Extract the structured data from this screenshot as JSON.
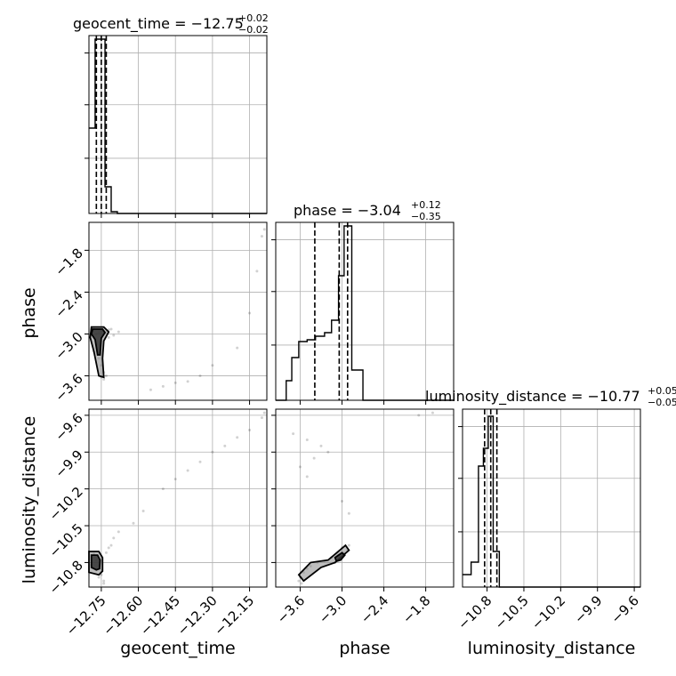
{
  "chart_data": {
    "type": "corner",
    "parameters": [
      "geocent_time",
      "phase",
      "luminosity_distance"
    ],
    "titles": [
      {
        "param": "geocent_time",
        "text": "geocent_time = −12.75",
        "plus": "+0.02",
        "minus": "−0.02"
      },
      {
        "param": "phase",
        "text": "phase = −3.04",
        "plus": "+0.12",
        "minus": "−0.35"
      },
      {
        "param": "luminosity_distance",
        "text": "luminosity_distance = −10.77",
        "plus": "+0.05",
        "minus": "−0.05"
      }
    ],
    "axis_labels": {
      "geocent_time": "geocent_time",
      "phase": "phase",
      "luminosity_distance": "luminosity_distance"
    },
    "ranges": {
      "geocent_time": [
        -12.8,
        -12.08
      ],
      "phase": [
        -3.95,
        -1.4
      ],
      "luminosity_distance": [
        -11.0,
        -9.55
      ]
    },
    "ticks": {
      "geocent_time": [
        -12.75,
        -12.6,
        -12.45,
        -12.3,
        -12.15
      ],
      "phase": [
        -3.6,
        -3.0,
        -2.4,
        -1.8
      ],
      "luminosity_distance": [
        -10.8,
        -10.5,
        -10.2,
        -9.9,
        -9.6
      ]
    },
    "tick_labels": {
      "geocent_time": [
        "−12.75",
        "−12.60",
        "−12.45",
        "−12.30",
        "−12.15"
      ],
      "phase": [
        "−3.6",
        "−3.0",
        "−2.4",
        "−1.8"
      ],
      "luminosity_distance": [
        "−10.8",
        "−10.5",
        "−10.2",
        "−9.9",
        "−9.6"
      ]
    },
    "quantiles": {
      "geocent_time": [
        -12.77,
        -12.75,
        -12.73
      ],
      "phase": [
        -3.39,
        -3.04,
        -2.92
      ],
      "luminosity_distance": [
        -10.82,
        -10.77,
        -10.72
      ]
    },
    "histograms": {
      "geocent_time": {
        "edges": [
          -12.8,
          -12.775,
          -12.755,
          -12.735,
          -12.71,
          -12.685,
          -12.66,
          -12.08
        ],
        "counts": [
          0.48,
          0.98,
          0.98,
          0.15,
          0.01,
          0.0,
          0.0
        ]
      },
      "phase": {
        "edges": [
          -3.95,
          -3.8,
          -3.72,
          -3.62,
          -3.5,
          -3.38,
          -3.25,
          -3.15,
          -3.05,
          -2.97,
          -2.86,
          -2.7,
          -1.4
        ],
        "counts": [
          0.0,
          0.11,
          0.24,
          0.33,
          0.34,
          0.36,
          0.38,
          0.45,
          0.7,
          0.98,
          0.17,
          0.0
        ]
      },
      "luminosity_distance": {
        "edges": [
          -11.0,
          -10.93,
          -10.87,
          -10.83,
          -10.79,
          -10.75,
          -10.7,
          -10.62,
          -9.55
        ],
        "counts": [
          0.07,
          0.14,
          0.68,
          0.78,
          0.96,
          0.2,
          0.0,
          0.0
        ]
      }
    },
    "scatter": {
      "phase_vs_geocent_time": [
        [
          -12.77,
          -3.0
        ],
        [
          -12.76,
          -2.98
        ],
        [
          -12.75,
          -2.95
        ],
        [
          -12.74,
          -2.96
        ],
        [
          -12.73,
          -2.97
        ],
        [
          -12.77,
          -3.15
        ],
        [
          -12.78,
          -3.25
        ],
        [
          -12.76,
          -3.35
        ],
        [
          -12.75,
          -3.45
        ],
        [
          -12.74,
          -3.55
        ],
        [
          -12.75,
          -3.62
        ],
        [
          -12.74,
          -3.65
        ],
        [
          -12.73,
          -3.6
        ],
        [
          -12.72,
          -2.94
        ],
        [
          -12.71,
          -2.93
        ],
        [
          -12.79,
          -2.99
        ],
        [
          -12.78,
          -2.93
        ],
        [
          -12.72,
          -3.05
        ],
        [
          -12.7,
          -3.02
        ],
        [
          -12.68,
          -2.97
        ],
        [
          -12.45,
          -3.7
        ],
        [
          -12.4,
          -3.68
        ],
        [
          -12.35,
          -3.6
        ],
        [
          -12.3,
          -3.45
        ],
        [
          -12.2,
          -3.2
        ],
        [
          -12.15,
          -2.7
        ],
        [
          -12.12,
          -2.1
        ],
        [
          -12.1,
          -1.6
        ],
        [
          -12.09,
          -1.5
        ],
        [
          -12.5,
          -3.75
        ],
        [
          -12.55,
          -3.8
        ]
      ],
      "luminosity_distance_vs_geocent_time": [
        [
          -12.78,
          -10.73
        ],
        [
          -12.77,
          -10.78
        ],
        [
          -12.76,
          -10.83
        ],
        [
          -12.75,
          -10.9
        ],
        [
          -12.74,
          -10.95
        ],
        [
          -12.73,
          -10.72
        ],
        [
          -12.72,
          -10.68
        ],
        [
          -12.71,
          -10.66
        ],
        [
          -12.79,
          -10.82
        ],
        [
          -12.77,
          -10.86
        ],
        [
          -12.76,
          -10.92
        ],
        [
          -12.74,
          -10.97
        ],
        [
          -12.7,
          -10.6
        ],
        [
          -12.68,
          -10.55
        ],
        [
          -12.62,
          -10.48
        ],
        [
          -12.58,
          -10.38
        ],
        [
          -12.5,
          -10.2
        ],
        [
          -12.45,
          -10.12
        ],
        [
          -12.4,
          -10.05
        ],
        [
          -12.35,
          -9.98
        ],
        [
          -12.3,
          -9.9
        ],
        [
          -12.25,
          -9.85
        ],
        [
          -12.2,
          -9.78
        ],
        [
          -12.15,
          -9.72
        ],
        [
          -12.1,
          -9.62
        ],
        [
          -12.09,
          -9.58
        ]
      ],
      "luminosity_distance_vs_phase": [
        [
          -3.6,
          -10.92
        ],
        [
          -3.55,
          -10.88
        ],
        [
          -3.5,
          -10.85
        ],
        [
          -3.45,
          -10.83
        ],
        [
          -3.35,
          -10.8
        ],
        [
          -3.25,
          -10.79
        ],
        [
          -3.15,
          -10.76
        ],
        [
          -3.05,
          -10.74
        ],
        [
          -2.98,
          -10.72
        ],
        [
          -2.92,
          -10.7
        ],
        [
          -2.9,
          -10.66
        ],
        [
          -3.0,
          -10.68
        ],
        [
          -3.1,
          -10.8
        ],
        [
          -3.62,
          -10.95
        ],
        [
          -3.58,
          -10.97
        ],
        [
          -3.7,
          -9.75
        ],
        [
          -3.5,
          -9.8
        ],
        [
          -3.3,
          -9.85
        ],
        [
          -3.2,
          -9.9
        ],
        [
          -3.4,
          -9.95
        ],
        [
          -3.6,
          -10.02
        ],
        [
          -3.5,
          -10.1
        ],
        [
          -3.0,
          -10.3
        ],
        [
          -2.9,
          -10.4
        ],
        [
          -1.9,
          -9.6
        ],
        [
          -1.7,
          -9.58
        ]
      ]
    },
    "contours": {
      "phase_vs_geocent_time": [
        {
          "level": "outer",
          "points": [
            [
              -12.79,
              -2.9
            ],
            [
              -12.74,
              -2.9
            ],
            [
              -12.72,
              -2.97
            ],
            [
              -12.74,
              -3.1
            ],
            [
              -12.745,
              -3.35
            ],
            [
              -12.74,
              -3.62
            ],
            [
              -12.76,
              -3.6
            ],
            [
              -12.78,
              -3.25
            ],
            [
              -12.795,
              -3.05
            ]
          ]
        },
        {
          "level": "inner",
          "points": [
            [
              -12.785,
              -2.93
            ],
            [
              -12.745,
              -2.93
            ],
            [
              -12.735,
              -2.98
            ],
            [
              -12.75,
              -3.06
            ],
            [
              -12.755,
              -3.3
            ],
            [
              -12.765,
              -3.3
            ],
            [
              -12.775,
              -3.08
            ],
            [
              -12.79,
              -3.0
            ]
          ]
        }
      ],
      "luminosity_distance_vs_geocent_time": [
        {
          "level": "outer",
          "points": [
            [
              -12.8,
              -10.71
            ],
            [
              -12.76,
              -10.71
            ],
            [
              -12.745,
              -10.76
            ],
            [
              -12.745,
              -10.87
            ],
            [
              -12.76,
              -10.9
            ],
            [
              -12.8,
              -10.88
            ]
          ]
        },
        {
          "level": "inner",
          "points": [
            [
              -12.79,
              -10.74
            ],
            [
              -12.765,
              -10.74
            ],
            [
              -12.755,
              -10.78
            ],
            [
              -12.757,
              -10.85
            ],
            [
              -12.77,
              -10.86
            ],
            [
              -12.79,
              -10.84
            ]
          ]
        }
      ],
      "luminosity_distance_vs_phase": [
        {
          "level": "outer",
          "points": [
            [
              -3.62,
              -10.9
            ],
            [
              -3.45,
              -10.8
            ],
            [
              -3.2,
              -10.78
            ],
            [
              -2.95,
              -10.66
            ],
            [
              -2.9,
              -10.7
            ],
            [
              -3.1,
              -10.8
            ],
            [
              -3.3,
              -10.84
            ],
            [
              -3.55,
              -10.95
            ]
          ]
        },
        {
          "level": "inner",
          "points": [
            [
              -3.1,
              -10.76
            ],
            [
              -3.0,
              -10.72
            ],
            [
              -2.96,
              -10.74
            ],
            [
              -3.02,
              -10.78
            ],
            [
              -3.08,
              -10.79
            ]
          ]
        }
      ]
    },
    "grid": true
  }
}
